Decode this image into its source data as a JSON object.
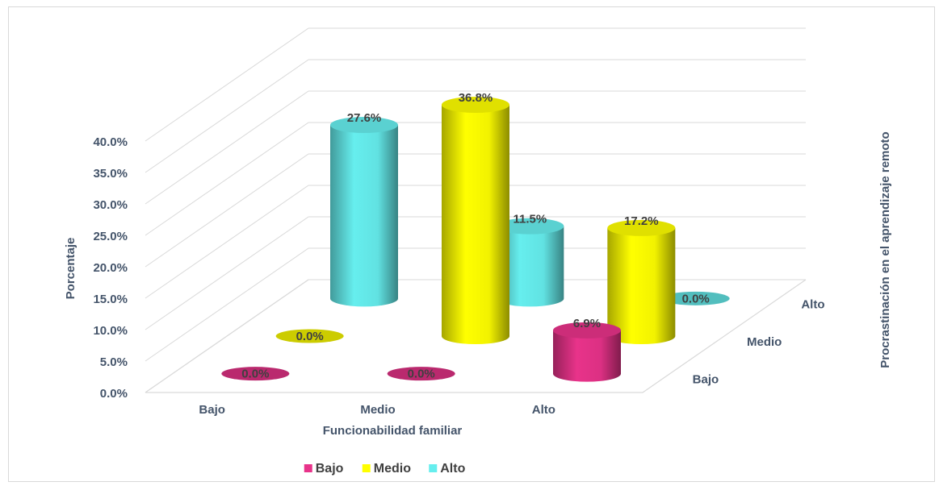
{
  "chart_data": {
    "type": "bar",
    "subtype": "3d-cylinder",
    "title": "",
    "xlabel": "Funcionabilidad familiar",
    "ylabel": "Porcentaje",
    "zlabel": "Procrastinación en el aprendizaje remoto",
    "categories": [
      "Bajo",
      "Medio",
      "Alto"
    ],
    "depth_categories": [
      "Bajo",
      "Medio",
      "Alto"
    ],
    "ylim": [
      0,
      40
    ],
    "yticks": [
      "0.0%",
      "5.0%",
      "10.0%",
      "15.0%",
      "20.0%",
      "25.0%",
      "30.0%",
      "35.0%",
      "40.0%"
    ],
    "grid": true,
    "legend_position": "bottom",
    "series": [
      {
        "name": "Bajo",
        "color": "#e8338a",
        "values": [
          0.0,
          0.0,
          6.9
        ],
        "labels": [
          "0.0%",
          "0.0%",
          "6.9%"
        ]
      },
      {
        "name": "Medio",
        "color": "#ffff00",
        "values": [
          0.0,
          36.8,
          17.2
        ],
        "labels": [
          "0.0%",
          "36.8%",
          "17.2%"
        ]
      },
      {
        "name": "Alto",
        "color": "#66eeee",
        "values": [
          27.6,
          11.5,
          0.0
        ],
        "labels": [
          "27.6%",
          "11.5%",
          "0.0%"
        ]
      }
    ]
  }
}
